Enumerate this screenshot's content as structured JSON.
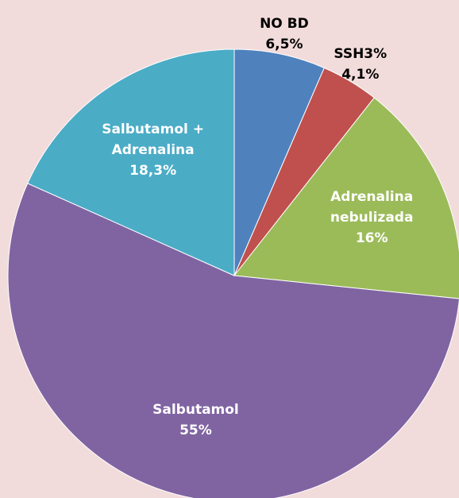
{
  "chart_data": {
    "type": "pie",
    "categories": [
      "NO BD",
      "SSH3%",
      "Adrenalina nebulizada",
      "Salbutamol",
      "Salbutamol + Adrenalina"
    ],
    "values": [
      6.5,
      4.1,
      16,
      55,
      18.3
    ],
    "value_labels": [
      "6,5%",
      "4,1%",
      "16%",
      "55%",
      "18,3%"
    ],
    "colors": [
      "#4f81bd",
      "#c0504d",
      "#9bbb59",
      "#8064a2",
      "#4bacc6"
    ]
  }
}
